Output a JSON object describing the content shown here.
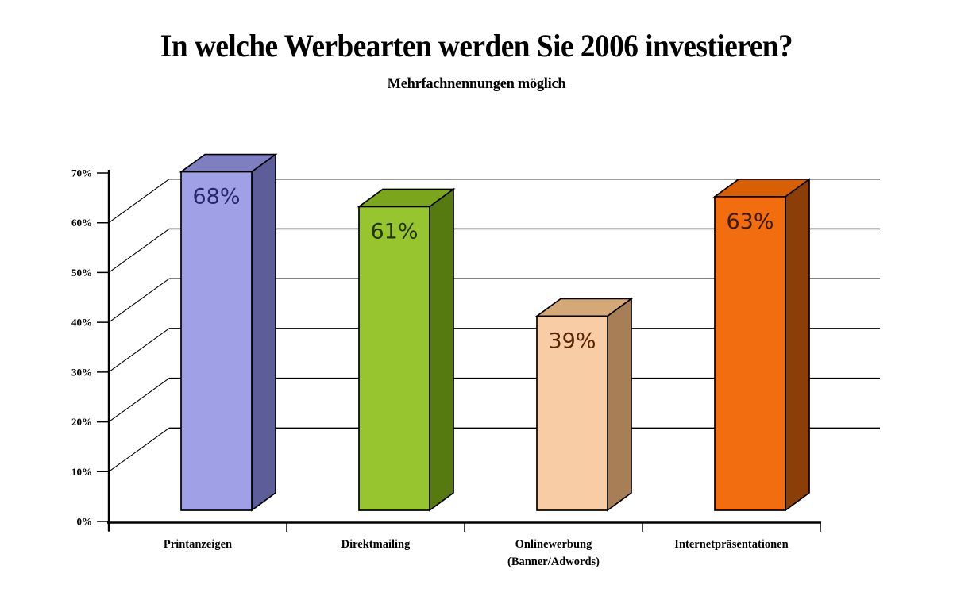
{
  "chart_data": {
    "type": "bar",
    "variant": "3d-column",
    "title": "In welche Werbearten werden Sie 2006 investieren?",
    "subtitle": "Mehrfachnennungen möglich",
    "categories": [
      "Printanzeigen",
      "Direktmailing",
      "Onlinewerbung",
      "Internetpräsentationen"
    ],
    "category_sublabels": [
      "",
      "",
      "(Banner/Adwords)",
      ""
    ],
    "values": [
      68,
      61,
      39,
      63
    ],
    "data_labels": [
      "68%",
      "61%",
      "39%",
      "63%"
    ],
    "xlabel": "",
    "ylabel": "",
    "ylim": [
      0,
      70
    ],
    "ytick_step": 10,
    "ytick_labels": [
      "0%",
      "10%",
      "20%",
      "30%",
      "40%",
      "50%",
      "60%",
      "70%"
    ],
    "gridline_levels": [
      10,
      20,
      30,
      40,
      50,
      60
    ],
    "grid": "horizontal-backwall",
    "legend": "none",
    "background": "#FFFFFF",
    "outline_color": "#000000",
    "bar_colors": [
      {
        "front": "#A0A0E6",
        "top": "#7E7EC0",
        "side": "#5D5D99",
        "label": "#26266B"
      },
      {
        "front": "#97C52F",
        "top": "#7CA51E",
        "side": "#567A10",
        "label": "#233300"
      },
      {
        "front": "#F8CCA4",
        "top": "#D5A878",
        "side": "#A87E56",
        "label": "#5A2404"
      },
      {
        "front": "#F26C10",
        "top": "#D85F04",
        "side": "#8C3E08",
        "label": "#3A1A02"
      }
    ]
  }
}
